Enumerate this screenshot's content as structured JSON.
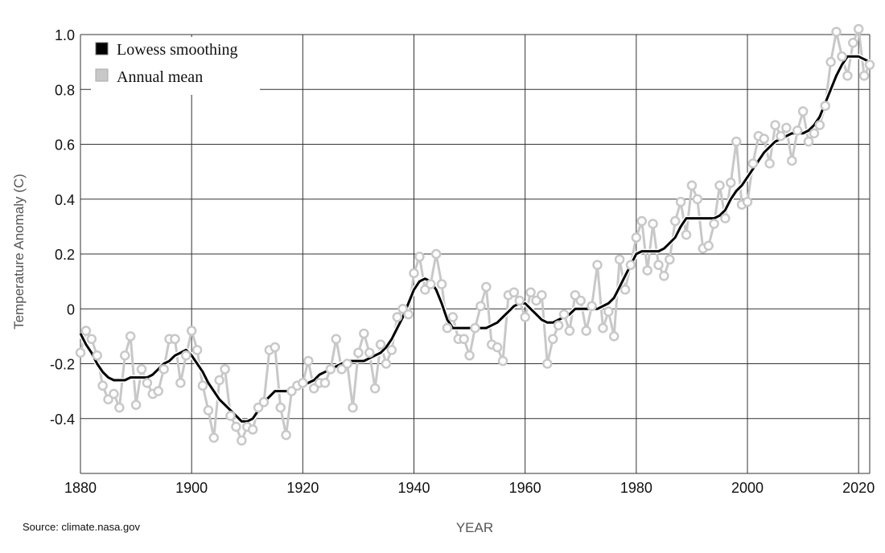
{
  "chart_data": {
    "type": "line",
    "title": "",
    "xlabel": "YEAR",
    "ylabel": "Temperature Anomaly (C)",
    "source": "Source: climate.nasa.gov",
    "xlim": [
      1880,
      2022
    ],
    "ylim": [
      -0.6,
      1.0
    ],
    "x_ticks": [
      1880,
      1900,
      1920,
      1940,
      1960,
      1980,
      2000,
      2020
    ],
    "y_ticks": [
      1.0,
      0.8,
      0.6,
      0.4,
      0.2,
      0,
      -0.2,
      -0.4
    ],
    "y_tick_labels": [
      "1.0",
      "0.8",
      "0.6",
      "0.4",
      "0.2",
      "0",
      "-0.2",
      "-0.4"
    ],
    "grid": true,
    "legend_position": "top-left",
    "colors": {
      "smoothing": "#000000",
      "annual": "#c8c8c8",
      "grid": "#333333"
    },
    "x": [
      1880,
      1881,
      1882,
      1883,
      1884,
      1885,
      1886,
      1887,
      1888,
      1889,
      1890,
      1891,
      1892,
      1893,
      1894,
      1895,
      1896,
      1897,
      1898,
      1899,
      1900,
      1901,
      1902,
      1903,
      1904,
      1905,
      1906,
      1907,
      1908,
      1909,
      1910,
      1911,
      1912,
      1913,
      1914,
      1915,
      1916,
      1917,
      1918,
      1919,
      1920,
      1921,
      1922,
      1923,
      1924,
      1925,
      1926,
      1927,
      1928,
      1929,
      1930,
      1931,
      1932,
      1933,
      1934,
      1935,
      1936,
      1937,
      1938,
      1939,
      1940,
      1941,
      1942,
      1943,
      1944,
      1945,
      1946,
      1947,
      1948,
      1949,
      1950,
      1951,
      1952,
      1953,
      1954,
      1955,
      1956,
      1957,
      1958,
      1959,
      1960,
      1961,
      1962,
      1963,
      1964,
      1965,
      1966,
      1967,
      1968,
      1969,
      1970,
      1971,
      1972,
      1973,
      1974,
      1975,
      1976,
      1977,
      1978,
      1979,
      1980,
      1981,
      1982,
      1983,
      1984,
      1985,
      1986,
      1987,
      1988,
      1989,
      1990,
      1991,
      1992,
      1993,
      1994,
      1995,
      1996,
      1997,
      1998,
      1999,
      2000,
      2001,
      2002,
      2003,
      2004,
      2005,
      2006,
      2007,
      2008,
      2009,
      2010,
      2011,
      2012,
      2013,
      2014,
      2015,
      2016,
      2017,
      2018,
      2019,
      2020,
      2021,
      2022
    ],
    "series": [
      {
        "name": "Lowess smoothing",
        "values": [
          -0.09,
          -0.13,
          -0.16,
          -0.2,
          -0.23,
          -0.25,
          -0.26,
          -0.26,
          -0.26,
          -0.25,
          -0.25,
          -0.25,
          -0.25,
          -0.24,
          -0.22,
          -0.2,
          -0.19,
          -0.17,
          -0.16,
          -0.15,
          -0.17,
          -0.2,
          -0.23,
          -0.27,
          -0.3,
          -0.33,
          -0.35,
          -0.37,
          -0.39,
          -0.41,
          -0.41,
          -0.4,
          -0.37,
          -0.34,
          -0.32,
          -0.3,
          -0.3,
          -0.3,
          -0.3,
          -0.29,
          -0.28,
          -0.27,
          -0.26,
          -0.24,
          -0.23,
          -0.22,
          -0.21,
          -0.2,
          -0.19,
          -0.19,
          -0.19,
          -0.19,
          -0.18,
          -0.17,
          -0.16,
          -0.14,
          -0.11,
          -0.07,
          -0.03,
          0.02,
          0.07,
          0.1,
          0.11,
          0.1,
          0.07,
          0.02,
          -0.04,
          -0.07,
          -0.07,
          -0.07,
          -0.07,
          -0.07,
          -0.07,
          -0.07,
          -0.06,
          -0.05,
          -0.03,
          -0.01,
          0.01,
          0.02,
          0.02,
          0.0,
          -0.02,
          -0.04,
          -0.05,
          -0.05,
          -0.04,
          -0.03,
          -0.02,
          0.0,
          0.0,
          0.0,
          0.0,
          0.0,
          0.01,
          0.02,
          0.04,
          0.08,
          0.12,
          0.16,
          0.2,
          0.21,
          0.21,
          0.21,
          0.21,
          0.22,
          0.24,
          0.26,
          0.3,
          0.33,
          0.33,
          0.33,
          0.33,
          0.33,
          0.33,
          0.34,
          0.36,
          0.4,
          0.43,
          0.45,
          0.48,
          0.51,
          0.54,
          0.57,
          0.59,
          0.61,
          0.62,
          0.63,
          0.64,
          0.64,
          0.64,
          0.65,
          0.67,
          0.7,
          0.75,
          0.8,
          0.85,
          0.89,
          0.92,
          0.92,
          0.92,
          0.91,
          0.9
        ]
      },
      {
        "name": "Annual mean",
        "values": [
          -0.16,
          -0.08,
          -0.11,
          -0.17,
          -0.28,
          -0.33,
          -0.31,
          -0.36,
          -0.17,
          -0.1,
          -0.35,
          -0.22,
          -0.27,
          -0.31,
          -0.3,
          -0.22,
          -0.11,
          -0.11,
          -0.27,
          -0.17,
          -0.08,
          -0.15,
          -0.28,
          -0.37,
          -0.47,
          -0.26,
          -0.22,
          -0.39,
          -0.43,
          -0.48,
          -0.43,
          -0.44,
          -0.36,
          -0.34,
          -0.15,
          -0.14,
          -0.36,
          -0.46,
          -0.3,
          -0.28,
          -0.27,
          -0.19,
          -0.29,
          -0.27,
          -0.27,
          -0.22,
          -0.11,
          -0.22,
          -0.2,
          -0.36,
          -0.16,
          -0.09,
          -0.16,
          -0.29,
          -0.13,
          -0.2,
          -0.15,
          -0.03,
          0.0,
          -0.02,
          0.13,
          0.19,
          0.07,
          0.09,
          0.2,
          0.09,
          -0.07,
          -0.03,
          -0.11,
          -0.11,
          -0.17,
          -0.07,
          0.01,
          0.08,
          -0.13,
          -0.14,
          -0.19,
          0.05,
          0.06,
          0.03,
          -0.03,
          0.06,
          0.03,
          0.05,
          -0.2,
          -0.11,
          -0.06,
          -0.02,
          -0.08,
          0.05,
          0.03,
          -0.08,
          0.01,
          0.16,
          -0.07,
          -0.01,
          -0.1,
          0.18,
          0.07,
          0.16,
          0.26,
          0.32,
          0.14,
          0.31,
          0.16,
          0.12,
          0.18,
          0.32,
          0.39,
          0.27,
          0.45,
          0.4,
          0.22,
          0.23,
          0.31,
          0.45,
          0.33,
          0.46,
          0.61,
          0.38,
          0.39,
          0.53,
          0.63,
          0.62,
          0.53,
          0.67,
          0.63,
          0.66,
          0.54,
          0.65,
          0.72,
          0.61,
          0.64,
          0.67,
          0.74,
          0.9,
          1.01,
          0.92,
          0.85,
          0.97,
          1.02,
          0.85,
          0.89
        ]
      }
    ]
  }
}
